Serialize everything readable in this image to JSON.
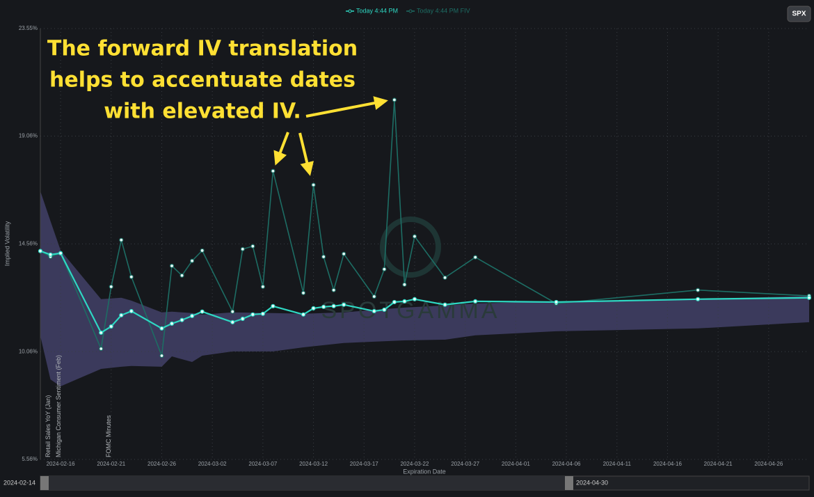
{
  "chart_data": {
    "type": "line",
    "legend": "top",
    "button": "SPX",
    "y_label": "Implied Volatility",
    "x_label": "Expiration Date",
    "watermark": "SPOTGAMMA",
    "annotation": [
      "The forward IV translation",
      "helps to accentuate dates",
      "with elevated IV."
    ],
    "xlim": [
      "2024-02-14",
      "2024-04-30"
    ],
    "xticks": [
      "2024-02-16",
      "2024-02-21",
      "2024-02-26",
      "2024-03-02",
      "2024-03-07",
      "2024-03-12",
      "2024-03-17",
      "2024-03-22",
      "2024-03-27",
      "2024-04-01",
      "2024-04-06",
      "2024-04-11",
      "2024-04-16",
      "2024-04-21",
      "2024-04-26"
    ],
    "ylim": [
      5.56,
      23.55
    ],
    "yticks": [
      {
        "value": 5.56,
        "label": "5.56%"
      },
      {
        "value": 10.06,
        "label": "10.06%"
      },
      {
        "value": 14.56,
        "label": "14.56%"
      },
      {
        "value": 19.06,
        "label": "19.06%"
      },
      {
        "value": 23.55,
        "label": "23.55%"
      }
    ],
    "grid": true,
    "x": [
      "2024-02-14",
      "2024-02-15",
      "2024-02-16",
      "2024-02-20",
      "2024-02-21",
      "2024-02-22",
      "2024-02-23",
      "2024-02-26",
      "2024-02-27",
      "2024-02-28",
      "2024-02-29",
      "2024-03-01",
      "2024-03-04",
      "2024-03-05",
      "2024-03-06",
      "2024-03-07",
      "2024-03-08",
      "2024-03-11",
      "2024-03-12",
      "2024-03-13",
      "2024-03-14",
      "2024-03-15",
      "2024-03-18",
      "2024-03-19",
      "2024-03-20",
      "2024-03-21",
      "2024-03-22",
      "2024-03-25",
      "2024-03-28",
      "2024-04-05",
      "2024-04-19",
      "2024-04-30"
    ],
    "series": [
      {
        "name": "Today 4:44 PM",
        "color": "#2ed8c3",
        "values": [
          14.26,
          14.11,
          14.17,
          10.85,
          11.11,
          11.58,
          11.75,
          11.03,
          11.23,
          11.38,
          11.55,
          11.73,
          11.29,
          11.43,
          11.61,
          11.64,
          11.96,
          11.61,
          11.87,
          11.93,
          11.96,
          12.02,
          11.75,
          11.81,
          12.13,
          12.16,
          12.25,
          12.02,
          12.16,
          12.13,
          12.25,
          12.31
        ]
      },
      {
        "name": "Today 4:44 PM FIV",
        "color": "#1d6d64",
        "values": [
          14.26,
          14.02,
          14.17,
          10.18,
          12.77,
          14.72,
          13.18,
          9.89,
          13.64,
          13.24,
          13.85,
          14.28,
          11.73,
          14.34,
          14.46,
          12.77,
          17.6,
          12.51,
          17.02,
          14.02,
          12.63,
          14.14,
          12.36,
          13.5,
          20.57,
          12.86,
          14.87,
          13.15,
          14.0,
          12.07,
          12.63,
          12.39
        ]
      }
    ],
    "band": {
      "color": "#3b3a5c",
      "x": [
        "2024-02-14",
        "2024-02-15",
        "2024-02-16",
        "2024-02-20",
        "2024-02-22",
        "2024-02-23",
        "2024-02-26",
        "2024-02-27",
        "2024-02-29",
        "2024-03-01",
        "2024-03-04",
        "2024-03-08",
        "2024-03-11",
        "2024-03-15",
        "2024-03-21",
        "2024-03-25",
        "2024-03-28",
        "2024-04-05",
        "2024-04-19",
        "2024-04-30"
      ],
      "upper": [
        16.76,
        15.51,
        14.29,
        12.25,
        12.31,
        12.19,
        11.7,
        11.73,
        11.67,
        11.61,
        11.7,
        11.67,
        11.64,
        11.7,
        11.9,
        11.99,
        12.07,
        12.16,
        12.25,
        12.39
      ],
      "lower": [
        10.71,
        8.9,
        8.61,
        9.34,
        9.43,
        9.46,
        9.43,
        9.86,
        9.63,
        9.89,
        10.07,
        10.07,
        10.24,
        10.42,
        10.53,
        10.56,
        10.74,
        10.91,
        11.03,
        11.29
      ]
    },
    "events": [
      {
        "date": "2024-02-15",
        "label": "Retail Sales YoY (Jan)"
      },
      {
        "date": "2024-02-15",
        "label": "Michigan Consumer Sentiment (Feb)"
      },
      {
        "date": "2024-02-21",
        "label": "FOMC Minutes"
      }
    ]
  }
}
